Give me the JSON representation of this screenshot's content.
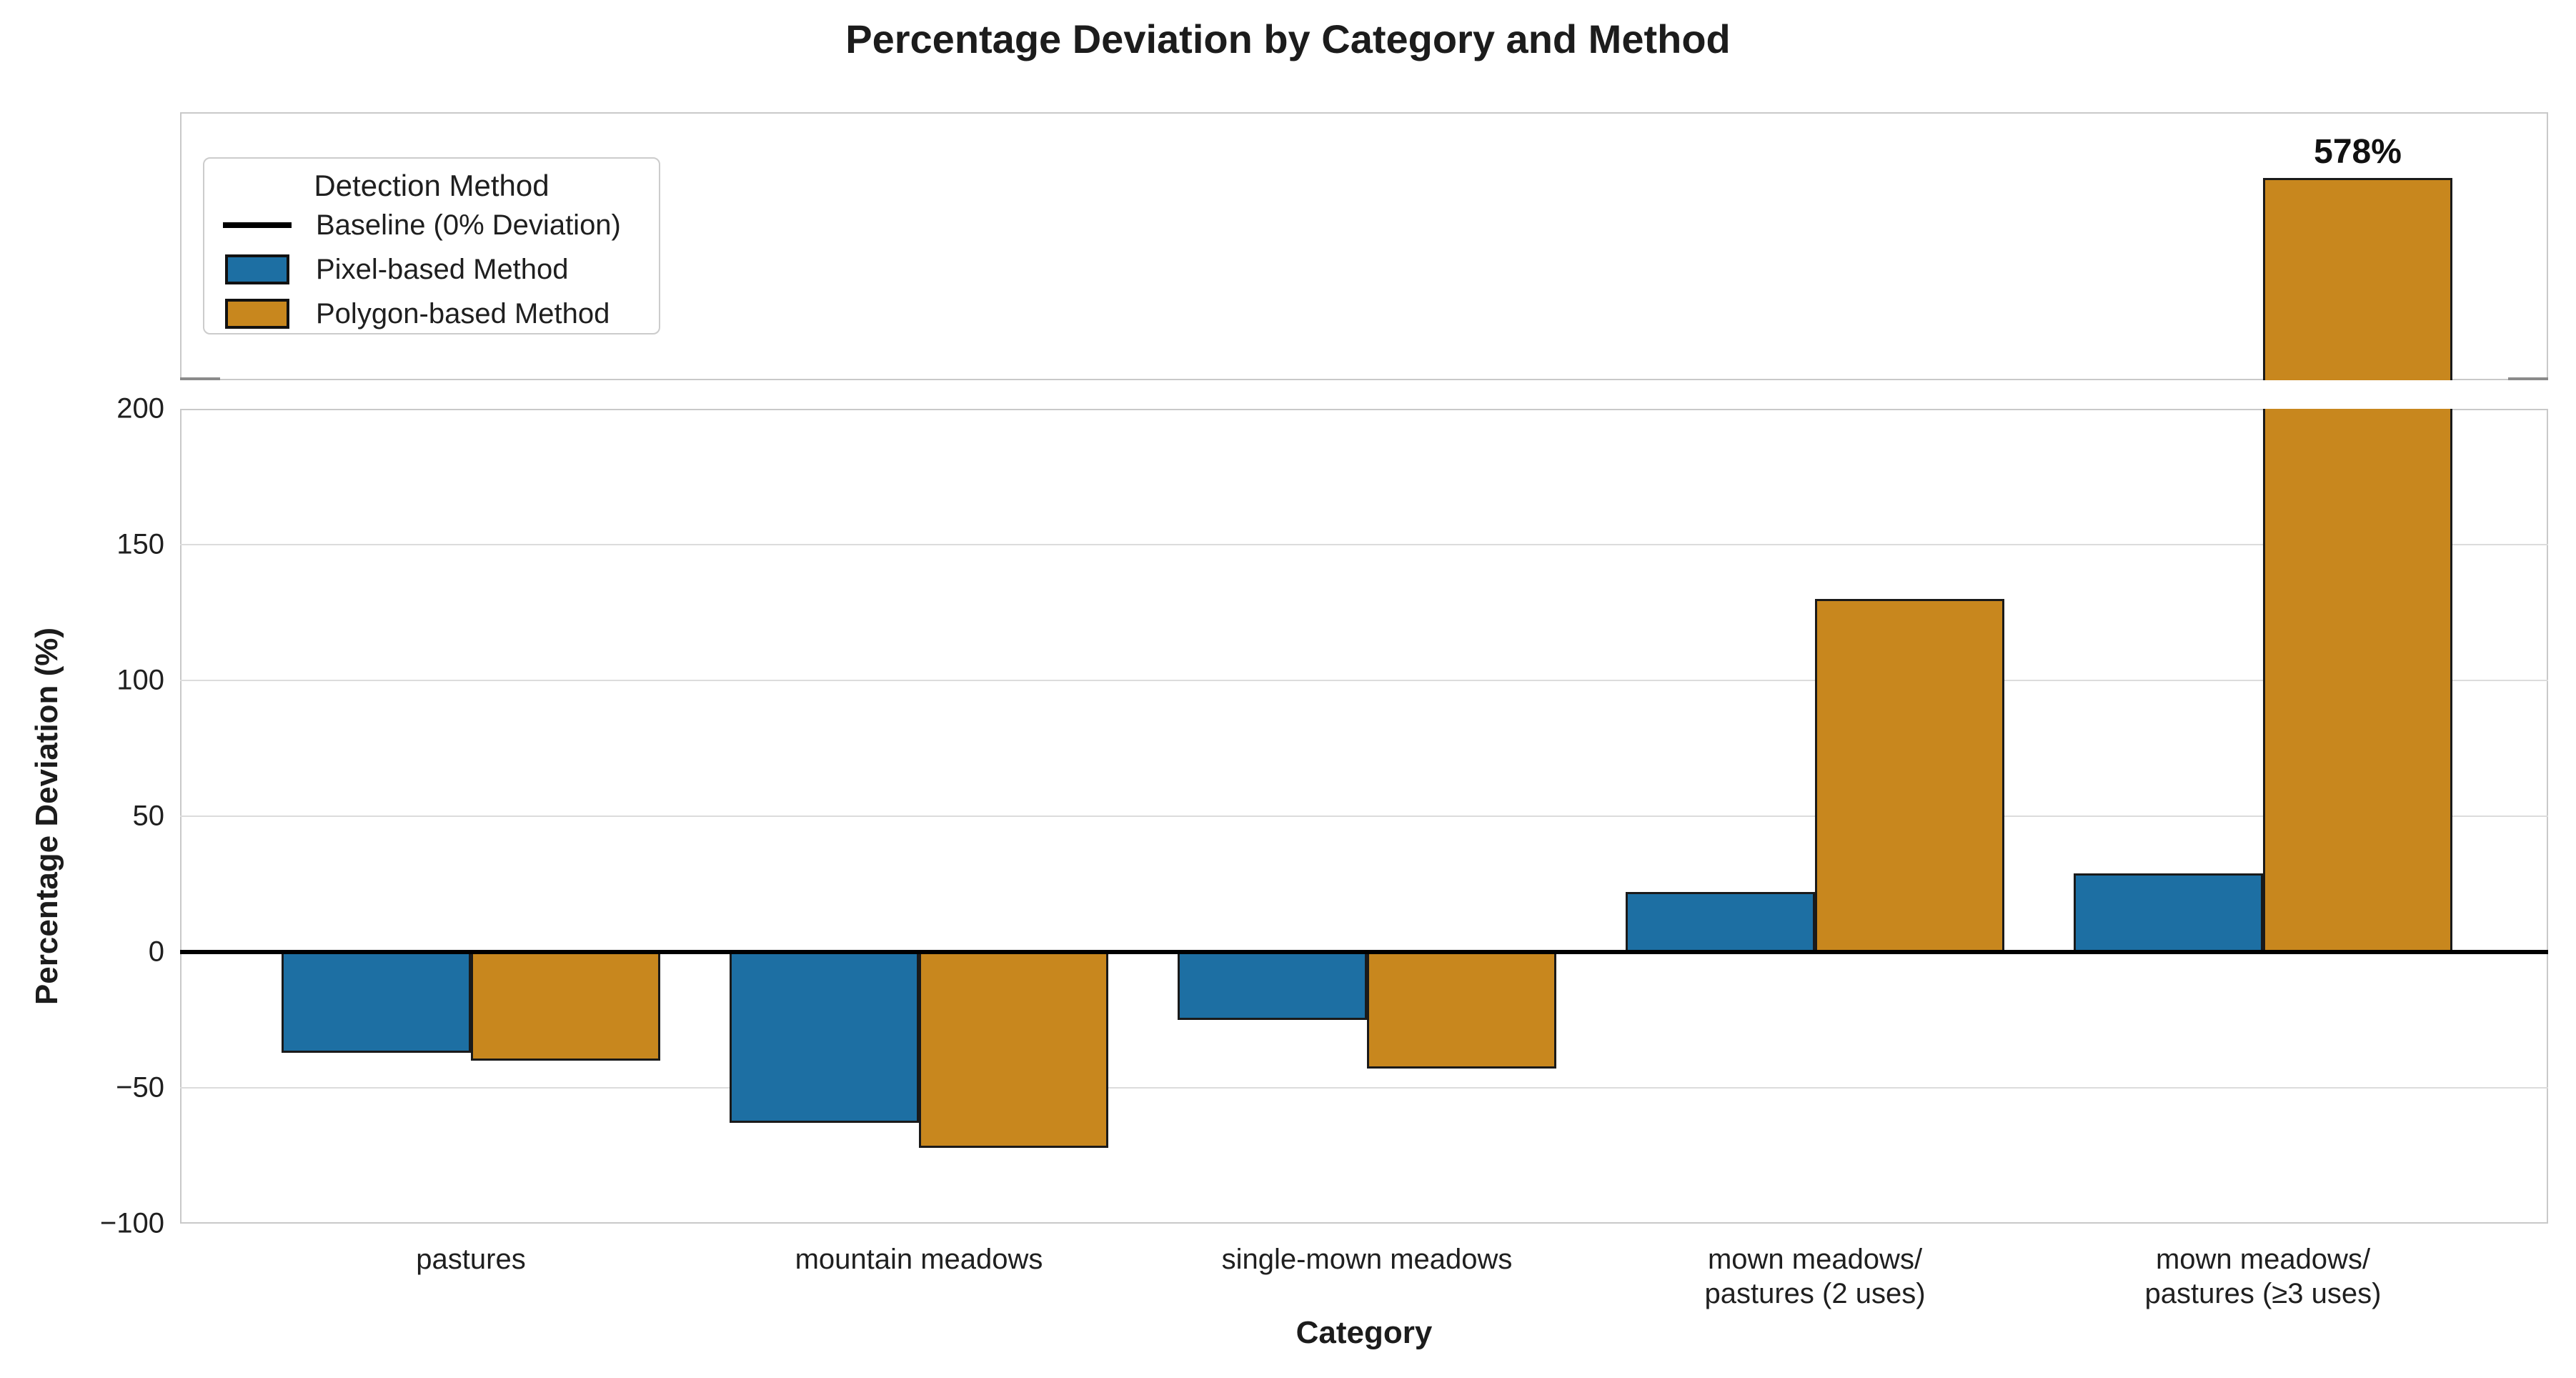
{
  "chart_data": {
    "type": "bar",
    "title": "Percentage Deviation by Category and Method",
    "xlabel": "Category",
    "ylabel": "Percentage Deviation (%)",
    "categories": [
      "pastures",
      "mountain meadows",
      "single-mown meadows",
      "mown meadows/\npastures (2 uses)",
      "mown meadows/\npastures (≥3 uses)"
    ],
    "series": [
      {
        "name": "Pixel-based Method",
        "color": "#1d6fa3",
        "values": [
          -37,
          -63,
          -25,
          22,
          29
        ]
      },
      {
        "name": "Polygon-based Method",
        "color": "#c8871e",
        "values": [
          -40,
          -72,
          -43,
          130,
          578
        ]
      }
    ],
    "baseline": {
      "label": "Baseline (0% Deviation)",
      "value": 0,
      "color": "#000000"
    },
    "bar_edge_color": "#1a1a1a",
    "annotations": [
      {
        "text": "578%",
        "category_index": 4,
        "series_index": 1,
        "value": 578
      }
    ],
    "y_axis": {
      "tick_values": [
        200,
        150,
        100,
        50,
        0,
        -50,
        -100
      ],
      "tick_labels": [
        "200",
        "150",
        "100",
        "50",
        "0",
        "−50",
        "−100"
      ],
      "main_ylim": [
        -100,
        200
      ],
      "upper_ylim": [
        200,
        700
      ],
      "broken_axis": true,
      "grid": true
    },
    "legend": {
      "title": "Detection Method",
      "position": "upper-left",
      "items": [
        {
          "type": "line",
          "label": "Baseline (0% Deviation)",
          "color": "#000000"
        },
        {
          "type": "patch",
          "label": "Pixel-based Method",
          "color": "#1d6fa3"
        },
        {
          "type": "patch",
          "label": "Polygon-based Method",
          "color": "#c8871e"
        }
      ]
    }
  }
}
